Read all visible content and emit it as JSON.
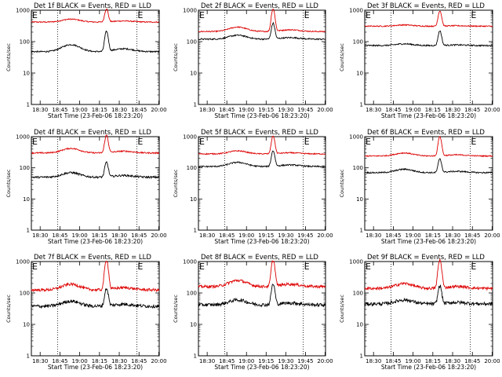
{
  "chart_data": {
    "type": "line",
    "grid": false,
    "layout": "3x3 small multiples",
    "y_scale": "log",
    "ylim": [
      1,
      1000
    ],
    "y_ticks": [
      1,
      10,
      100,
      1000
    ],
    "ylabel": "Counts/sec",
    "xlabel": "Start Time (23-Feb-06 18:23:20)",
    "x_ticks": [
      "18:30",
      "18:45",
      "19:00",
      "18:15",
      "18:30",
      "18:45",
      "20:00"
    ],
    "x_ticks_variant": [
      "18:30",
      "18:45",
      "19:00",
      "19:15",
      "19:30",
      "19:45",
      "20:00"
    ],
    "x_range_minutes": [
      0,
      97
    ],
    "vertical_dotted_lines_minutes": [
      20,
      80
    ],
    "top_markers": [
      {
        "label": "E",
        "minute": 0
      },
      {
        "label": "E",
        "minute": 80
      }
    ],
    "series_colors": {
      "events": "#000000",
      "lld": "#dd0000"
    },
    "panels": [
      {
        "title": "Det 1f BLACK = Events, RED = LLD",
        "x_tick_set": "main",
        "events": {
          "base": 48,
          "bump": 80,
          "peak": 210,
          "noise": 0.05
        },
        "lld": {
          "base": 420,
          "bump": 520,
          "peak": 1100,
          "noise": 0.04
        }
      },
      {
        "title": "Det 2f BLACK = Events, RED = LLD",
        "x_tick_set": "variant",
        "events": {
          "base": 120,
          "bump": 160,
          "peak": 380,
          "noise": 0.05
        },
        "lld": {
          "base": 210,
          "bump": 290,
          "peak": 1100,
          "noise": 0.04
        }
      },
      {
        "title": "Det 3f BLACK = Events, RED = LLD",
        "x_tick_set": "main",
        "events": {
          "base": 75,
          "bump": 85,
          "peak": 220,
          "noise": 0.05
        },
        "lld": {
          "base": 310,
          "bump": 340,
          "peak": 950,
          "noise": 0.04
        }
      },
      {
        "title": "Det 4f BLACK = Events, RED = LLD",
        "x_tick_set": "main",
        "events": {
          "base": 50,
          "bump": 70,
          "peak": 150,
          "noise": 0.07
        },
        "lld": {
          "base": 300,
          "bump": 420,
          "peak": 1100,
          "noise": 0.05
        }
      },
      {
        "title": "Det 5f BLACK = Events, RED = LLD",
        "x_tick_set": "variant",
        "events": {
          "base": 110,
          "bump": 150,
          "peak": 350,
          "noise": 0.05
        },
        "lld": {
          "base": 280,
          "bump": 350,
          "peak": 1050,
          "noise": 0.04
        }
      },
      {
        "title": "Det 6f BLACK = Events, RED = LLD",
        "x_tick_set": "main",
        "events": {
          "base": 70,
          "bump": 90,
          "peak": 190,
          "noise": 0.05
        },
        "lld": {
          "base": 240,
          "bump": 300,
          "peak": 1000,
          "noise": 0.04
        }
      },
      {
        "title": "Det 7f BLACK = Events, RED = LLD",
        "x_tick_set": "main",
        "events": {
          "base": 38,
          "bump": 55,
          "peak": 140,
          "noise": 0.12
        },
        "lld": {
          "base": 125,
          "bump": 190,
          "peak": 1100,
          "noise": 0.1
        }
      },
      {
        "title": "Det 8f BLACK = Events, RED = LLD",
        "x_tick_set": "variant",
        "events": {
          "base": 42,
          "bump": 60,
          "peak": 190,
          "noise": 0.12
        },
        "lld": {
          "base": 160,
          "bump": 250,
          "peak": 1100,
          "noise": 0.1
        }
      },
      {
        "title": "Det 9f BLACK = Events, RED = LLD",
        "x_tick_set": "main",
        "events": {
          "base": 45,
          "bump": 60,
          "peak": 170,
          "noise": 0.12
        },
        "lld": {
          "base": 140,
          "bump": 200,
          "peak": 1100,
          "noise": 0.1
        }
      }
    ]
  }
}
